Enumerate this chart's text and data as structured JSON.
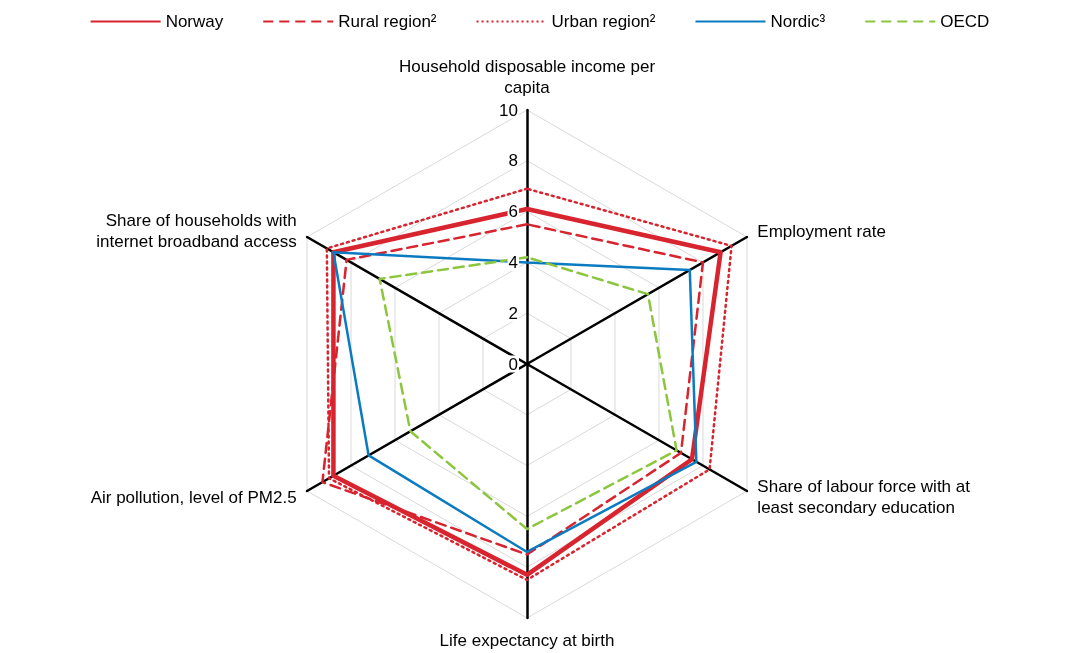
{
  "chart_data": {
    "type": "radar",
    "categories": [
      "Household disposable income per capita",
      "Employment rate",
      "Share of labour force with at least secondary education",
      "Life expectancy at birth",
      "Air pollution, level of PM2.5",
      "Share of households with internet broadband access"
    ],
    "series": [
      {
        "name": "Norway",
        "color": "#d7242f",
        "line_style": "solid",
        "values": [
          6.1,
          8.8,
          7.5,
          8.3,
          8.8,
          8.8
        ]
      },
      {
        "name": "Rural region²",
        "color": "#d7242f",
        "line_style": "dashed",
        "values": [
          5.5,
          8.0,
          7.0,
          7.5,
          9.3,
          8.2
        ]
      },
      {
        "name": "Urban region²",
        "color": "#d7242f",
        "line_style": "dotted",
        "values": [
          6.9,
          9.3,
          8.3,
          8.5,
          9.0,
          9.1
        ]
      },
      {
        "name": "Nordic³",
        "color": "#0a7bc1",
        "line_style": "solid",
        "values": [
          4.0,
          7.4,
          7.7,
          7.4,
          7.2,
          8.8
        ]
      },
      {
        "name": "OECD",
        "color": "#8cc63f",
        "line_style": "dashed",
        "values": [
          4.2,
          5.5,
          6.8,
          6.5,
          5.3,
          6.7
        ]
      }
    ],
    "ylim": [
      0,
      10
    ],
    "yticks": [
      0,
      2,
      4,
      6,
      8,
      10
    ],
    "grid": true,
    "legend": "top",
    "marker": "none"
  }
}
